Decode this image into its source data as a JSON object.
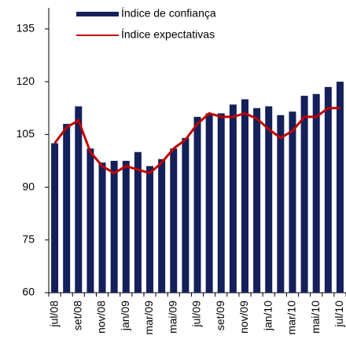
{
  "chart_data": {
    "type": "bar",
    "categories": [
      "jul/08",
      null,
      "set/08",
      null,
      "nov/08",
      null,
      "jan/09",
      null,
      "mar/09",
      null,
      "mai/09",
      null,
      "jul/09",
      null,
      "set/09",
      null,
      "nov/09",
      null,
      "jan/10",
      null,
      "mar/10",
      null,
      "mai/10",
      null,
      "jul/10"
    ],
    "series": [
      {
        "name": "Índice de confiança",
        "type": "bar",
        "color": "#14205a",
        "values": [
          102.5,
          108,
          113,
          101,
          97,
          97.5,
          97.5,
          100,
          96,
          98,
          101,
          104,
          110,
          111,
          111,
          113.5,
          115,
          112.5,
          113,
          110.5,
          111.5,
          116,
          116.5,
          118.5,
          120
        ]
      },
      {
        "name": "Índice expectativas",
        "type": "line",
        "color": "#c00000",
        "values": [
          102.5,
          107,
          109,
          100,
          96,
          94,
          96,
          95,
          94,
          97,
          101,
          103.5,
          108,
          111,
          110,
          110,
          111,
          109.5,
          106.5,
          104,
          106,
          110,
          110,
          112.5,
          112.5
        ]
      }
    ],
    "ylim": [
      60,
      141
    ],
    "yticks": [
      60,
      75,
      90,
      105,
      120,
      135
    ],
    "legend": "top"
  }
}
